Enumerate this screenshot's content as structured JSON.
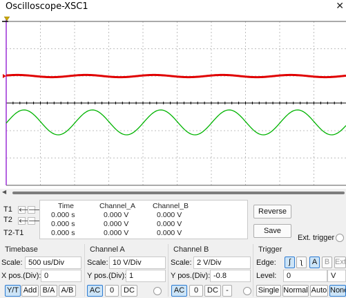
{
  "window": {
    "title": "Oscilloscope-XSC1",
    "close_glyph": "✕"
  },
  "colors": {
    "channel_a": "#e00000",
    "channel_b": "#00b300",
    "cursor": "#9b2fd6",
    "grid": "#bdbdbd",
    "axis": "#000000",
    "accent": "#2a7ad1"
  },
  "cursors": {
    "rows": [
      "T1",
      "T2",
      "T2-T1"
    ],
    "arrow_left": "🡐",
    "arrow_right": "🡒",
    "headers": [
      "Time",
      "Channel_A",
      "Channel_B"
    ],
    "t1": [
      "0.000 s",
      "0.000 V",
      "0.000 V"
    ],
    "t2": [
      "0.000 s",
      "0.000 V",
      "0.000 V"
    ],
    "t2_t1": [
      "0.000 s",
      "0.000 V",
      "0.000 V"
    ]
  },
  "buttons": {
    "reverse": "Reverse",
    "save": "Save"
  },
  "ext_trigger": {
    "label": "Ext. trigger"
  },
  "timebase": {
    "title": "Timebase",
    "scale_label": "Scale:",
    "scale_value": "500 us/Div",
    "xpos_label": "X pos.(Div):",
    "xpos_value": "0",
    "modes": [
      "Y/T",
      "Add",
      "B/A",
      "A/B"
    ],
    "active_mode": "Y/T"
  },
  "channel_a": {
    "title": "Channel A",
    "scale_label": "Scale:",
    "scale_value": "10  V/Div",
    "ypos_label": "Y pos.(Div):",
    "ypos_value": "1",
    "coupling": [
      "AC",
      "0",
      "DC"
    ],
    "active": "AC"
  },
  "channel_b": {
    "title": "Channel B",
    "scale_label": "Scale:",
    "scale_value": "2  V/Div",
    "ypos_label": "Y pos.(Div):",
    "ypos_value": "-0.8",
    "coupling": [
      "AC",
      "0",
      "DC",
      "-"
    ],
    "active": "AC"
  },
  "trigger": {
    "title": "Trigger",
    "edge_label": "Edge:",
    "edge_rise": "ʃ",
    "edge_fall": "ʅ",
    "sources": [
      "A",
      "B",
      "Ext"
    ],
    "active_source": "A",
    "level_label": "Level:",
    "level_value": "0",
    "level_unit": "V",
    "modes": [
      "Single",
      "Normal",
      "Auto",
      "None"
    ],
    "active_mode": "None"
  }
}
